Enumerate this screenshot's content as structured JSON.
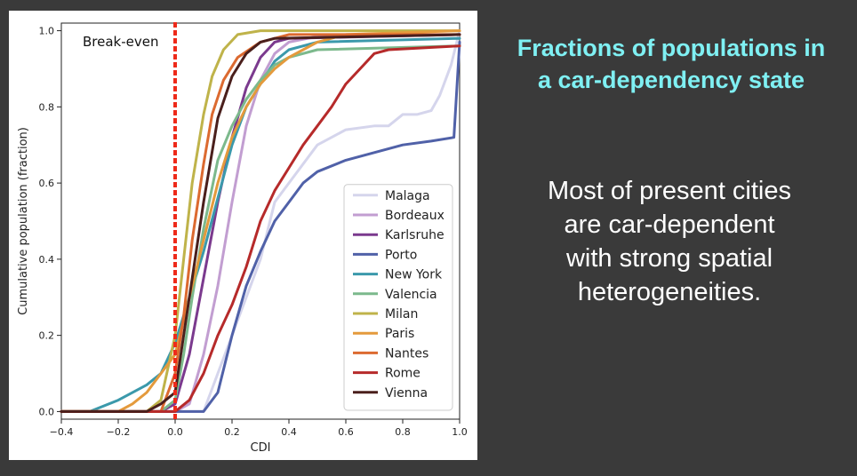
{
  "slide": {
    "heading_lines": [
      "Fractions of populations in",
      "a car-dependency state"
    ],
    "body_lines": [
      "Most of present cities",
      "are car-dependent",
      "with strong spatial",
      "heterogeneities."
    ],
    "heading_color": "#7ff0f3",
    "body_color": "#ffffff",
    "background": "#3a3a3a"
  },
  "chart_data": {
    "type": "line",
    "title": "",
    "xlabel": "CDI",
    "ylabel": "Cumulative population (fraction)",
    "xlim": [
      -0.4,
      1.0
    ],
    "ylim": [
      -0.02,
      1.02
    ],
    "xticks": [
      -0.4,
      -0.2,
      0.0,
      0.2,
      0.4,
      0.6,
      0.8,
      1.0
    ],
    "xtick_labels": [
      "−0.4",
      "−0.2",
      "0.0",
      "0.2",
      "0.4",
      "0.6",
      "0.8",
      "1.0"
    ],
    "yticks": [
      0.0,
      0.2,
      0.4,
      0.6,
      0.8,
      1.0
    ],
    "ytick_labels": [
      "0.0",
      "0.2",
      "0.4",
      "0.6",
      "0.8",
      "1.0"
    ],
    "grid": false,
    "legend_position": "lower-right",
    "annotation": {
      "text": "Break-even",
      "x": 0.0,
      "style": "dashed vertical line",
      "color": "#ee2a1a"
    },
    "series": [
      {
        "name": "Malaga",
        "color": "#d5d5ec",
        "points": [
          [
            -0.4,
            0
          ],
          [
            0.1,
            0
          ],
          [
            0.2,
            0.2
          ],
          [
            0.3,
            0.4
          ],
          [
            0.35,
            0.55
          ],
          [
            0.42,
            0.62
          ],
          [
            0.5,
            0.7
          ],
          [
            0.6,
            0.74
          ],
          [
            0.7,
            0.75
          ],
          [
            0.75,
            0.75
          ],
          [
            0.8,
            0.78
          ],
          [
            0.85,
            0.78
          ],
          [
            0.9,
            0.79
          ],
          [
            0.93,
            0.83
          ],
          [
            0.97,
            0.91
          ],
          [
            1.0,
            1.0
          ]
        ]
      },
      {
        "name": "Bordeaux",
        "color": "#c29ed1",
        "points": [
          [
            -0.4,
            0
          ],
          [
            0,
            0
          ],
          [
            0.05,
            0.02
          ],
          [
            0.1,
            0.15
          ],
          [
            0.15,
            0.33
          ],
          [
            0.2,
            0.55
          ],
          [
            0.25,
            0.75
          ],
          [
            0.3,
            0.87
          ],
          [
            0.35,
            0.94
          ],
          [
            0.4,
            0.97
          ],
          [
            0.5,
            0.985
          ],
          [
            1.0,
            0.99
          ]
        ]
      },
      {
        "name": "Karlsruhe",
        "color": "#7b3a8e",
        "points": [
          [
            -0.4,
            0
          ],
          [
            -0.05,
            0
          ],
          [
            0,
            0.02
          ],
          [
            0.05,
            0.15
          ],
          [
            0.1,
            0.35
          ],
          [
            0.15,
            0.55
          ],
          [
            0.2,
            0.72
          ],
          [
            0.25,
            0.85
          ],
          [
            0.3,
            0.93
          ],
          [
            0.35,
            0.97
          ],
          [
            0.4,
            0.98
          ],
          [
            1.0,
            0.99
          ]
        ]
      },
      {
        "name": "Porto",
        "color": "#5061a8",
        "points": [
          [
            -0.4,
            0
          ],
          [
            0.1,
            0
          ],
          [
            0.15,
            0.05
          ],
          [
            0.2,
            0.2
          ],
          [
            0.25,
            0.33
          ],
          [
            0.3,
            0.42
          ],
          [
            0.35,
            0.5
          ],
          [
            0.4,
            0.55
          ],
          [
            0.45,
            0.6
          ],
          [
            0.5,
            0.63
          ],
          [
            0.6,
            0.66
          ],
          [
            0.7,
            0.68
          ],
          [
            0.8,
            0.7
          ],
          [
            0.9,
            0.71
          ],
          [
            0.98,
            0.72
          ],
          [
            1.0,
            0.97
          ]
        ]
      },
      {
        "name": "New York",
        "color": "#3b99ab",
        "points": [
          [
            -0.4,
            0
          ],
          [
            -0.3,
            0
          ],
          [
            -0.2,
            0.03
          ],
          [
            -0.1,
            0.07
          ],
          [
            -0.05,
            0.1
          ],
          [
            0,
            0.18
          ],
          [
            0.05,
            0.3
          ],
          [
            0.1,
            0.42
          ],
          [
            0.15,
            0.56
          ],
          [
            0.2,
            0.7
          ],
          [
            0.25,
            0.8
          ],
          [
            0.3,
            0.86
          ],
          [
            0.35,
            0.92
          ],
          [
            0.4,
            0.95
          ],
          [
            0.5,
            0.97
          ],
          [
            1.0,
            0.98
          ]
        ]
      },
      {
        "name": "Valencia",
        "color": "#7cb98c",
        "points": [
          [
            -0.4,
            0
          ],
          [
            -0.05,
            0
          ],
          [
            0,
            0.03
          ],
          [
            0.03,
            0.15
          ],
          [
            0.06,
            0.3
          ],
          [
            0.1,
            0.48
          ],
          [
            0.15,
            0.66
          ],
          [
            0.2,
            0.75
          ],
          [
            0.25,
            0.82
          ],
          [
            0.3,
            0.87
          ],
          [
            0.35,
            0.91
          ],
          [
            0.4,
            0.93
          ],
          [
            0.5,
            0.95
          ],
          [
            1.0,
            0.96
          ]
        ]
      },
      {
        "name": "Milan",
        "color": "#bfb34a",
        "points": [
          [
            -0.4,
            0
          ],
          [
            -0.1,
            0
          ],
          [
            -0.05,
            0.03
          ],
          [
            0,
            0.2
          ],
          [
            0.03,
            0.4
          ],
          [
            0.06,
            0.6
          ],
          [
            0.1,
            0.78
          ],
          [
            0.13,
            0.88
          ],
          [
            0.17,
            0.95
          ],
          [
            0.22,
            0.99
          ],
          [
            0.3,
            1.0
          ],
          [
            1.0,
            1.0
          ]
        ]
      },
      {
        "name": "Paris",
        "color": "#e49a3c",
        "points": [
          [
            -0.4,
            0
          ],
          [
            -0.2,
            0
          ],
          [
            -0.15,
            0.02
          ],
          [
            -0.1,
            0.05
          ],
          [
            0,
            0.15
          ],
          [
            0.05,
            0.3
          ],
          [
            0.1,
            0.45
          ],
          [
            0.15,
            0.6
          ],
          [
            0.2,
            0.72
          ],
          [
            0.25,
            0.8
          ],
          [
            0.3,
            0.86
          ],
          [
            0.35,
            0.9
          ],
          [
            0.4,
            0.93
          ],
          [
            0.45,
            0.95
          ],
          [
            0.5,
            0.97
          ],
          [
            0.6,
            0.99
          ],
          [
            1.0,
            1.0
          ]
        ]
      },
      {
        "name": "Nantes",
        "color": "#dc6a30",
        "points": [
          [
            -0.4,
            0
          ],
          [
            -0.05,
            0
          ],
          [
            0,
            0.1
          ],
          [
            0.03,
            0.25
          ],
          [
            0.06,
            0.45
          ],
          [
            0.1,
            0.65
          ],
          [
            0.13,
            0.78
          ],
          [
            0.17,
            0.87
          ],
          [
            0.22,
            0.93
          ],
          [
            0.3,
            0.97
          ],
          [
            0.4,
            0.99
          ],
          [
            1.0,
            0.99
          ]
        ]
      },
      {
        "name": "Rome",
        "color": "#b62a2a",
        "points": [
          [
            -0.4,
            0
          ],
          [
            0,
            0
          ],
          [
            0.05,
            0.03
          ],
          [
            0.1,
            0.1
          ],
          [
            0.15,
            0.2
          ],
          [
            0.2,
            0.28
          ],
          [
            0.25,
            0.38
          ],
          [
            0.3,
            0.5
          ],
          [
            0.35,
            0.58
          ],
          [
            0.4,
            0.64
          ],
          [
            0.45,
            0.7
          ],
          [
            0.5,
            0.75
          ],
          [
            0.55,
            0.8
          ],
          [
            0.6,
            0.86
          ],
          [
            0.65,
            0.9
          ],
          [
            0.7,
            0.94
          ],
          [
            0.75,
            0.95
          ],
          [
            1.0,
            0.96
          ]
        ]
      },
      {
        "name": "Vienna",
        "color": "#4a1f1c",
        "points": [
          [
            -0.4,
            0
          ],
          [
            -0.1,
            0
          ],
          [
            -0.05,
            0.02
          ],
          [
            0,
            0.05
          ],
          [
            0.05,
            0.3
          ],
          [
            0.1,
            0.55
          ],
          [
            0.15,
            0.77
          ],
          [
            0.2,
            0.88
          ],
          [
            0.25,
            0.94
          ],
          [
            0.3,
            0.97
          ],
          [
            0.35,
            0.98
          ],
          [
            1.0,
            0.99
          ]
        ]
      }
    ]
  }
}
